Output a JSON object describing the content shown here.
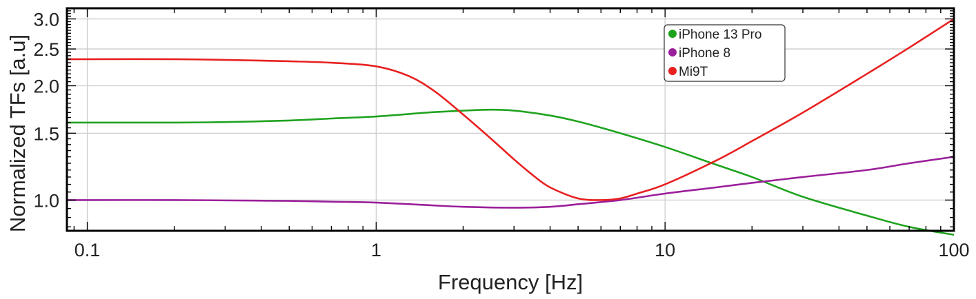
{
  "chart_data": {
    "type": "line",
    "xlabel": "Frequency [Hz]",
    "ylabel": "Normalized TFs [a.u]",
    "xscale": "log",
    "yscale": "log",
    "xlim": [
      0.085,
      100
    ],
    "ylim": [
      0.83,
      3.2
    ],
    "xticks": [
      {
        "value": 0.1,
        "label": "0.1"
      },
      {
        "value": 1,
        "label": "1"
      },
      {
        "value": 10,
        "label": "10"
      },
      {
        "value": 100,
        "label": "100"
      }
    ],
    "yticks": [
      {
        "value": 1.0,
        "label": "1.0"
      },
      {
        "value": 1.5,
        "label": "1.5"
      },
      {
        "value": 2.0,
        "label": "2.0"
      },
      {
        "value": 2.5,
        "label": "2.5"
      },
      {
        "value": 3.0,
        "label": "3.0"
      }
    ],
    "grid": true,
    "legend_position": "top-right",
    "series": [
      {
        "name": "iPhone 13 Pro",
        "color": "#1fa31f",
        "x": [
          0.085,
          0.1,
          0.2,
          0.3,
          0.5,
          0.7,
          1.0,
          1.5,
          2.0,
          2.5,
          3.0,
          4.0,
          5.0,
          7.0,
          10,
          15,
          20,
          30,
          50,
          70,
          100
        ],
        "y": [
          1.6,
          1.6,
          1.6,
          1.605,
          1.62,
          1.64,
          1.66,
          1.7,
          1.72,
          1.73,
          1.72,
          1.67,
          1.61,
          1.5,
          1.38,
          1.24,
          1.15,
          1.02,
          0.91,
          0.85,
          0.81
        ]
      },
      {
        "name": "iPhone 8",
        "color": "#9b1f9b",
        "x": [
          0.085,
          0.1,
          0.2,
          0.3,
          0.5,
          0.7,
          1.0,
          1.5,
          2.0,
          3.0,
          4.0,
          5.0,
          7.0,
          10,
          15,
          20,
          30,
          50,
          70,
          100
        ],
        "y": [
          1.0,
          1.0,
          1.0,
          0.998,
          0.995,
          0.99,
          0.985,
          0.97,
          0.96,
          0.955,
          0.96,
          0.975,
          1.0,
          1.04,
          1.08,
          1.11,
          1.15,
          1.2,
          1.25,
          1.3
        ]
      },
      {
        "name": "Mi9T",
        "color": "#e82020",
        "x": [
          0.085,
          0.1,
          0.2,
          0.3,
          0.5,
          0.7,
          1.0,
          1.3,
          1.6,
          2.0,
          2.5,
          3.0,
          3.5,
          4.0,
          5.0,
          6.0,
          7.0,
          8.0,
          10,
          15,
          20,
          30,
          50,
          70,
          100
        ],
        "y": [
          2.35,
          2.35,
          2.35,
          2.34,
          2.32,
          2.3,
          2.25,
          2.12,
          1.93,
          1.68,
          1.45,
          1.28,
          1.16,
          1.08,
          1.01,
          1.0,
          1.01,
          1.04,
          1.1,
          1.27,
          1.43,
          1.7,
          2.15,
          2.52,
          3.0
        ]
      }
    ]
  }
}
